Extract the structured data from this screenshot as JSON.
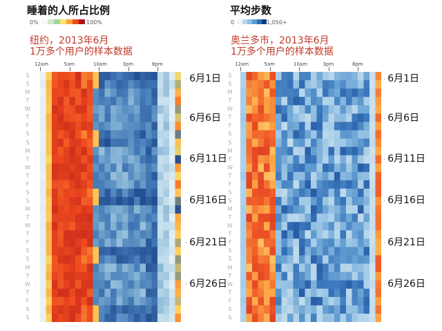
{
  "chart_data": [
    {
      "type": "heatmap",
      "title": "睡着的人所占比例",
      "legend": {
        "min_label": "0%",
        "max_label": "100%",
        "colors": [
          "#f4f8f8",
          "#cfe9cb",
          "#9fd89a",
          "#ffe36a",
          "#fca23d",
          "#ee4a1f",
          "#b3121a"
        ]
      },
      "subtitle_lines": [
        "纽约，2013年6月",
        "1万多个用户的样本数据"
      ],
      "x_labels": [
        "12am",
        "5am",
        "10am",
        "3pm",
        "8pm"
      ],
      "y_day_labels": [
        "S",
        "S",
        "M",
        "T",
        "W",
        "T",
        "F",
        "S",
        "S",
        "M",
        "T",
        "W",
        "T",
        "F",
        "S",
        "S",
        "M",
        "T",
        "W",
        "T",
        "F",
        "S",
        "S",
        "M",
        "T",
        "W",
        "T",
        "F",
        "S",
        "S"
      ],
      "date_labels": [
        "6月1日",
        "6月6日",
        "6月11日",
        "6月16日",
        "6月21日",
        "6月26日"
      ],
      "days": 30,
      "hours": 24
    },
    {
      "type": "heatmap",
      "title": "平均步数",
      "legend": {
        "min_label": "0",
        "max_label": "1,050+",
        "colors": [
          "#eef4fb",
          "#bdd7ee",
          "#8fbfe3",
          "#5c9fd2",
          "#2d6fb6",
          "#0b3d8c"
        ]
      },
      "subtitle_lines": [
        "奥兰多市，2013年6月",
        "1万多个用户的样本数据"
      ],
      "x_labels": [
        "12am",
        "5am",
        "10am",
        "3pm",
        "8pm"
      ],
      "y_day_labels": [
        "S",
        "S",
        "M",
        "T",
        "W",
        "T",
        "F",
        "S",
        "S",
        "M",
        "T",
        "W",
        "T",
        "F",
        "S",
        "S",
        "M",
        "T",
        "W",
        "T",
        "F",
        "S",
        "S",
        "M",
        "T",
        "W",
        "T",
        "F",
        "S",
        "S"
      ],
      "date_labels": [
        "6月1日",
        "6月6日",
        "6月11日",
        "6月16日",
        "6月21日",
        "6月26日"
      ],
      "days": 30,
      "hours": 24
    }
  ]
}
